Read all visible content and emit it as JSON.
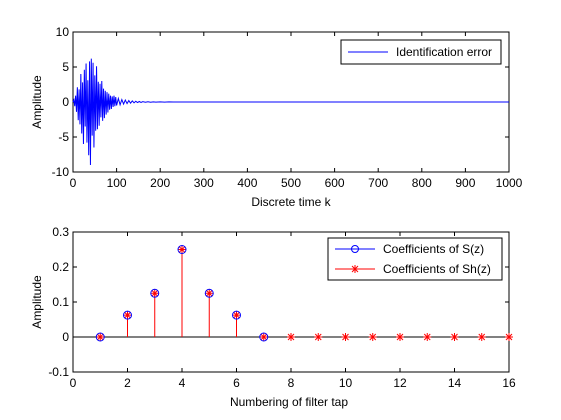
{
  "chart_data": [
    {
      "type": "line",
      "xlabel": "Discrete time k",
      "ylabel": "Amplitude",
      "xlim": [
        0,
        1000
      ],
      "ylim": [
        -10,
        10
      ],
      "xticks": [
        "0",
        "100",
        "200",
        "300",
        "400",
        "500",
        "600",
        "700",
        "800",
        "900",
        "1000"
      ],
      "yticks": [
        "10",
        "5",
        "0",
        "-5",
        "-10"
      ],
      "legend_position": "top-right",
      "series": [
        {
          "name": "Identification error",
          "color": "#0000ff",
          "x": [
            0,
            2,
            4,
            6,
            8,
            10,
            12,
            14,
            16,
            18,
            20,
            22,
            24,
            26,
            28,
            30,
            32,
            34,
            36,
            38,
            40,
            42,
            44,
            46,
            48,
            50,
            52,
            54,
            56,
            58,
            60,
            62,
            64,
            66,
            68,
            70,
            72,
            74,
            76,
            78,
            80,
            82,
            84,
            86,
            88,
            90,
            92,
            94,
            96,
            98,
            100,
            104,
            108,
            112,
            116,
            120,
            124,
            128,
            132,
            136,
            140,
            144,
            148,
            152,
            156,
            160,
            166,
            172,
            178,
            184,
            190,
            200,
            210,
            220,
            230,
            240,
            250,
            1000
          ],
          "y": [
            0,
            0.3,
            -0.6,
            0.9,
            -1.4,
            2.1,
            -2.6,
            1.8,
            -3.2,
            4.0,
            -4.5,
            2.8,
            -6.0,
            4.6,
            -3.5,
            5.5,
            -5.8,
            3.1,
            -7.6,
            5.8,
            -9.0,
            6.2,
            -4.8,
            5.6,
            -6.5,
            3.8,
            -4.1,
            5.1,
            -3.9,
            2.9,
            -3.4,
            2.6,
            -2.2,
            3.0,
            -2.7,
            1.9,
            -2.3,
            1.6,
            -1.8,
            1.4,
            -1.5,
            1.2,
            -1.1,
            0.9,
            -1.0,
            0.8,
            -0.7,
            0.9,
            -0.6,
            0.7,
            -0.5,
            0.5,
            -0.4,
            0.35,
            -0.3,
            0.28,
            -0.22,
            0.2,
            -0.16,
            0.15,
            -0.12,
            0.1,
            -0.08,
            0.07,
            -0.06,
            0.05,
            -0.04,
            0.03,
            -0.03,
            0.02,
            -0.02,
            0.01,
            -0.01,
            0.01,
            0,
            0,
            0,
            0
          ]
        }
      ]
    },
    {
      "type": "stem",
      "xlabel": "Numbering of filter tap",
      "ylabel": "Amplitude",
      "xlim": [
        0,
        16
      ],
      "ylim": [
        -0.1,
        0.3
      ],
      "xticks": [
        "0",
        "2",
        "4",
        "6",
        "8",
        "10",
        "12",
        "14",
        "16"
      ],
      "yticks": [
        "0.3",
        "0.2",
        "0.1",
        "0",
        "-0.1"
      ],
      "legend_position": "top-right",
      "series": [
        {
          "name": "Coefficients of S(z)",
          "color": "#0000ff",
          "marker": "circle",
          "x": [
            1,
            2,
            3,
            4,
            5,
            6,
            7
          ],
          "y": [
            0,
            0.0625,
            0.125,
            0.25,
            0.125,
            0.0625,
            0
          ]
        },
        {
          "name": "Coefficients of Sh(z)",
          "color": "#ff0000",
          "marker": "star",
          "x": [
            1,
            2,
            3,
            4,
            5,
            6,
            7,
            8,
            9,
            10,
            11,
            12,
            13,
            14,
            15,
            16
          ],
          "y": [
            0,
            0.0625,
            0.125,
            0.25,
            0.125,
            0.0625,
            0,
            0,
            0,
            0,
            0,
            0,
            0,
            0,
            0,
            0
          ]
        }
      ]
    }
  ]
}
